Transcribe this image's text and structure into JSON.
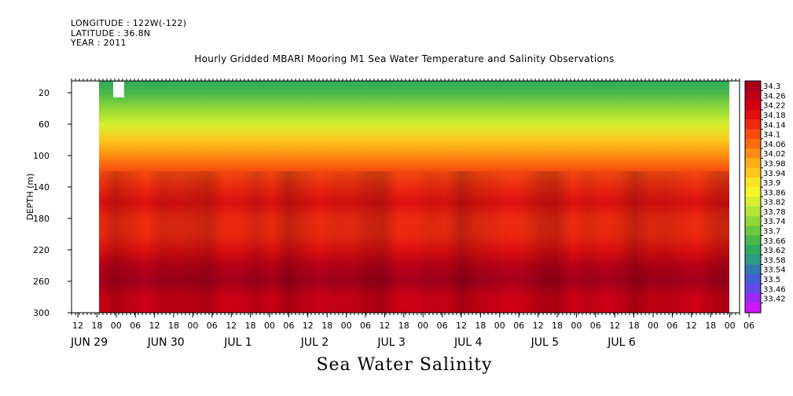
{
  "meta_lines": [
    "LONGITUDE : 122W(-122)",
    "LATITUDE : 36.8N",
    "YEAR : 2011"
  ],
  "title": "Hourly Gridded MBARI Mooring M1 Sea Water Temperature and Salinity Observations",
  "bottom_label": "Sea Water Salinity",
  "chart_data": {
    "type": "heatmap",
    "title": "Hourly Gridded MBARI Mooring M1 Sea Water Temperature and Salinity Observations",
    "ylabel": "DEPTH (m)",
    "xlabel": "Sea Water Salinity",
    "ylim": [
      300,
      5
    ],
    "y_ticks": [
      20,
      60,
      100,
      140,
      180,
      220,
      260,
      300
    ],
    "x_hour_ticks": [
      "12",
      "18",
      "00",
      "06",
      "12",
      "18",
      "00",
      "06",
      "12",
      "18",
      "00",
      "06",
      "12",
      "18",
      "00",
      "06",
      "12",
      "18",
      "00",
      "06",
      "12",
      "18",
      "00",
      "06",
      "12",
      "18",
      "00",
      "06",
      "12",
      "18",
      "00",
      "06",
      "12",
      "18",
      "00",
      "06"
    ],
    "x_day_labels": [
      {
        "label": "JUN 29",
        "hour_index": 0
      },
      {
        "label": "JUN 30",
        "hour_index": 4
      },
      {
        "label": "JUL  1",
        "hour_index": 8
      },
      {
        "label": "JUL  2",
        "hour_index": 12
      },
      {
        "label": "JUL  3",
        "hour_index": 16
      },
      {
        "label": "JUL  4",
        "hour_index": 20
      },
      {
        "label": "JUL  5",
        "hour_index": 24
      },
      {
        "label": "JUL  6",
        "hour_index": 28
      }
    ],
    "colorbar_levels": [
      "34.3",
      "34.26",
      "34.22",
      "34.18",
      "34.14",
      "34.1",
      "34.06",
      "34.02",
      "33.98",
      "33.94",
      "33.9",
      "33.86",
      "33.82",
      "33.78",
      "33.74",
      "33.7",
      "33.66",
      "33.62",
      "33.58",
      "33.54",
      "33.5",
      "33.46",
      "33.42"
    ],
    "colorbar_colors": [
      "#a8001c",
      "#bc0018",
      "#d00014",
      "#e01010",
      "#ef2a10",
      "#f84a10",
      "#fc6a10",
      "#fd8c12",
      "#fead16",
      "#fdc81c",
      "#fbe424",
      "#f2f52c",
      "#d4f030",
      "#b4e634",
      "#90d838",
      "#6cc83e",
      "#48b848",
      "#2ea85e",
      "#2c9a84",
      "#3478b0",
      "#4060d8",
      "#6448ea",
      "#a028f4",
      "#cc18f8"
    ],
    "profile": [
      {
        "depth": 5,
        "salinity": 33.58
      },
      {
        "depth": 20,
        "salinity": 33.62
      },
      {
        "depth": 40,
        "salinity": 33.7
      },
      {
        "depth": 60,
        "salinity": 33.8
      },
      {
        "depth": 80,
        "salinity": 33.92
      },
      {
        "depth": 100,
        "salinity": 34.0
      },
      {
        "depth": 120,
        "salinity": 34.06
      },
      {
        "depth": 140,
        "salinity": 34.12
      },
      {
        "depth": 160,
        "salinity": 34.14
      },
      {
        "depth": 180,
        "salinity": 34.1
      },
      {
        "depth": 200,
        "salinity": 34.1
      },
      {
        "depth": 220,
        "salinity": 34.14
      },
      {
        "depth": 240,
        "salinity": 34.22
      },
      {
        "depth": 260,
        "salinity": 34.28
      },
      {
        "depth": 280,
        "salinity": 34.2
      },
      {
        "depth": 300,
        "salinity": 34.18
      }
    ]
  }
}
